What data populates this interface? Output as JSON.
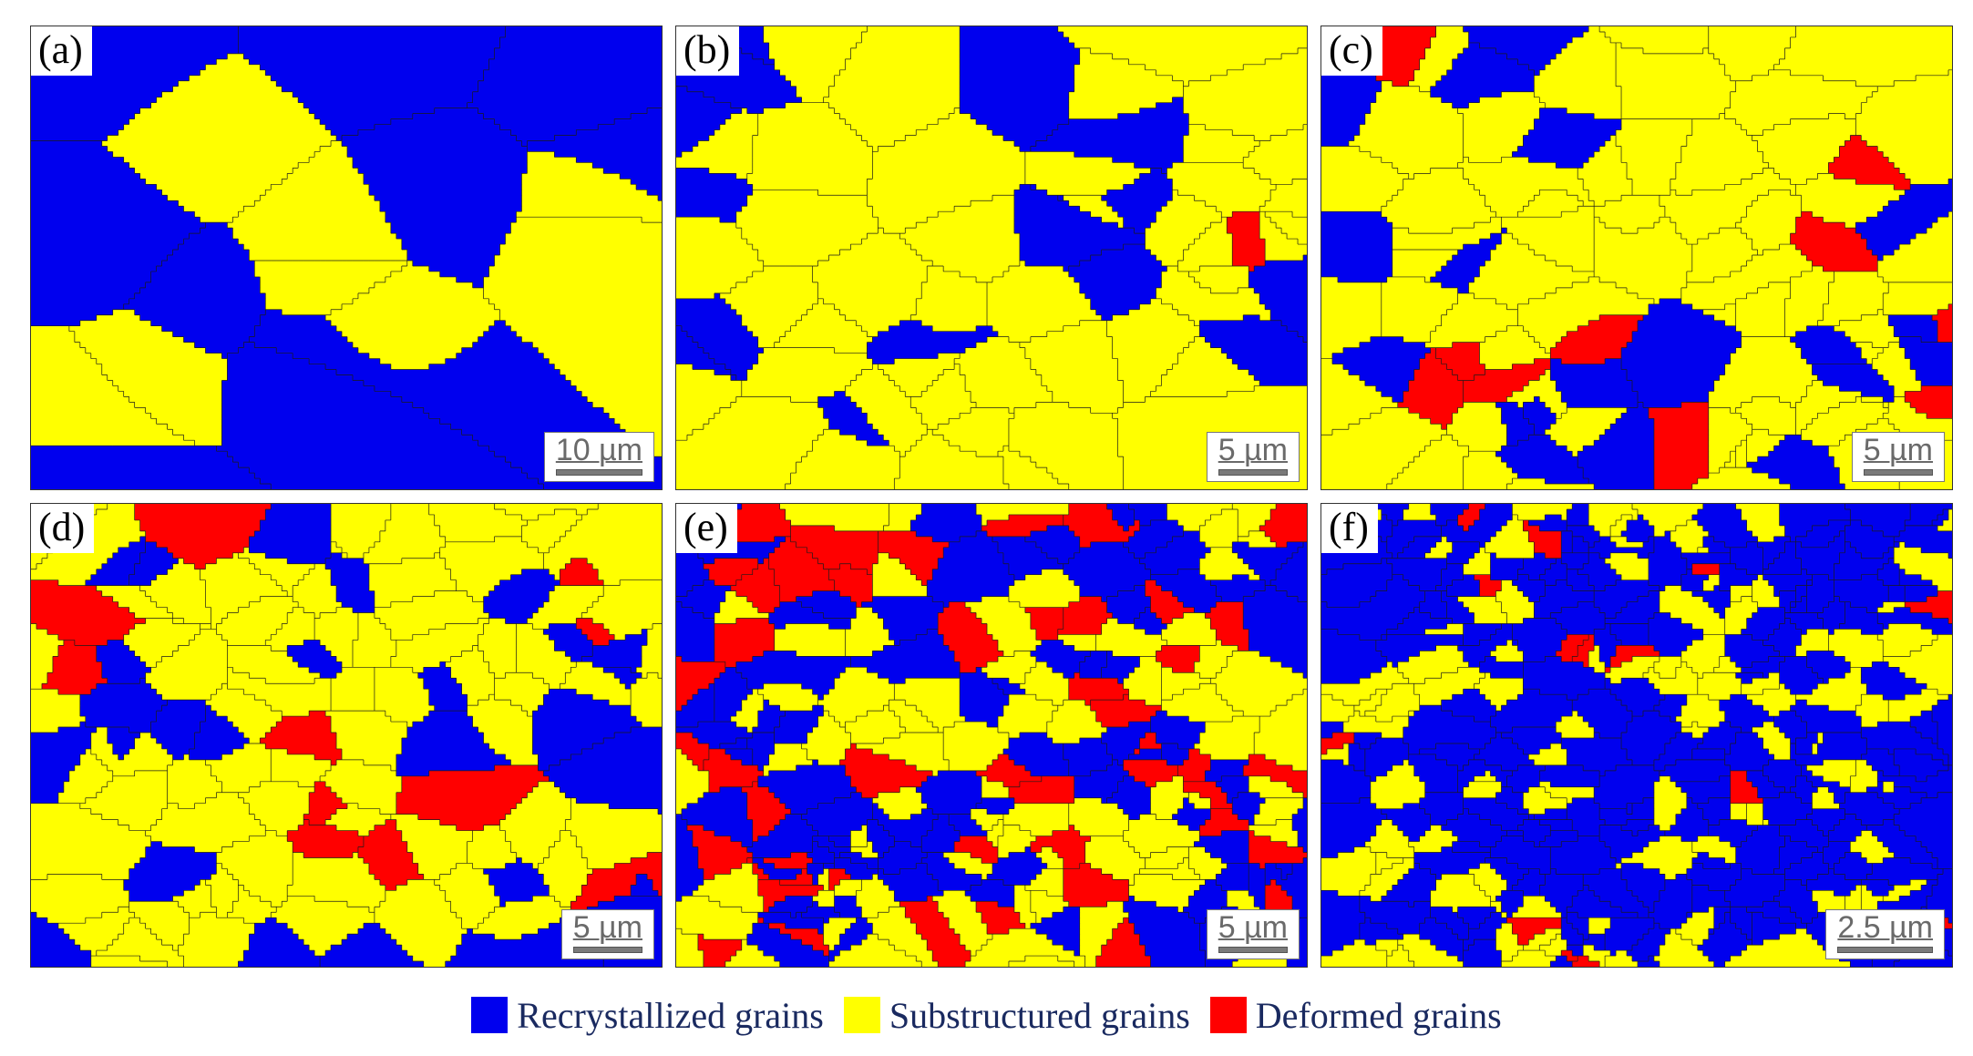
{
  "panels": [
    {
      "label": "(a)",
      "scale": "10 µm",
      "mix": [
        0.62,
        0.36,
        0.02
      ],
      "density": 18
    },
    {
      "label": "(b)",
      "scale": "5 µm",
      "mix": [
        0.25,
        0.72,
        0.03
      ],
      "density": 60
    },
    {
      "label": "(c)",
      "scale": "5 µm",
      "mix": [
        0.16,
        0.72,
        0.12
      ],
      "density": 90
    },
    {
      "label": "(d)",
      "scale": "5 µm",
      "mix": [
        0.18,
        0.68,
        0.14
      ],
      "density": 110
    },
    {
      "label": "(e)",
      "scale": "5 µm",
      "mix": [
        0.42,
        0.38,
        0.2
      ],
      "density": 220
    },
    {
      "label": "(f)",
      "scale": "2.5 µm",
      "mix": [
        0.66,
        0.3,
        0.04
      ],
      "density": 320
    }
  ],
  "legend": [
    {
      "label": "Recrystallized grains",
      "color": "#0000ee"
    },
    {
      "label": "Substructured grains",
      "color": "#ffff00"
    },
    {
      "label": "Deformed grains",
      "color": "#ff0000"
    }
  ]
}
